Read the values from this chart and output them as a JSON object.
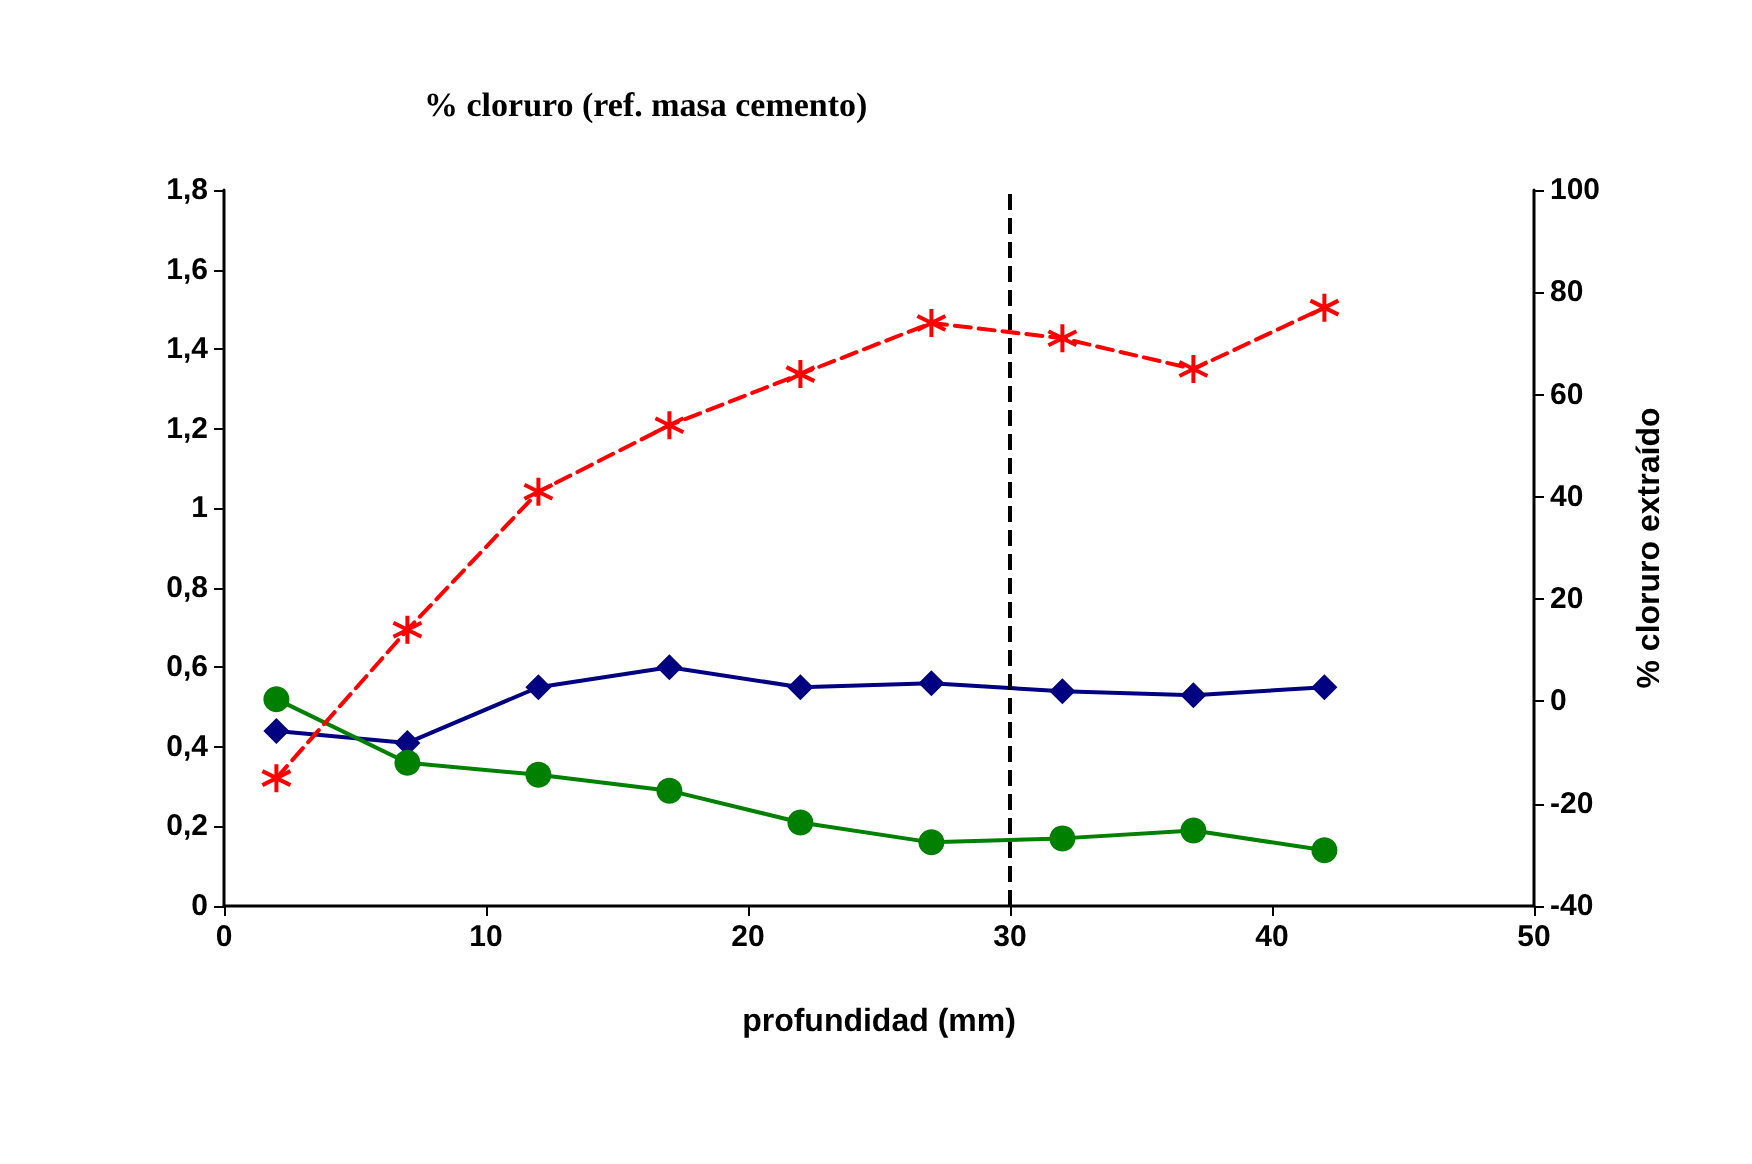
{
  "chart_data": {
    "type": "line",
    "ylabel": "% cloruro (ref. masa cemento)",
    "xlabel": "profundidad (mm)",
    "y2label": "% cloruro extraído",
    "x": [
      2,
      7,
      12,
      17,
      22,
      27,
      32,
      37,
      42
    ],
    "series": [
      {
        "color": "#000080",
        "marker": "diamond",
        "line_style": "solid",
        "values": [
          0.44,
          0.41,
          0.55,
          0.6,
          0.55,
          0.56,
          0.54,
          0.53,
          0.55
        ]
      },
      {
        "color": "#008000",
        "marker": "circle",
        "line_style": "solid",
        "values": [
          0.52,
          0.36,
          0.33,
          0.29,
          0.21,
          0.16,
          0.17,
          0.19,
          0.14
        ]
      },
      {
        "color": "#ff0000",
        "marker": "cross",
        "line_style": "dashed",
        "axis": "y2",
        "values": [
          -15,
          14,
          41,
          54,
          64,
          74,
          71,
          65,
          77
        ]
      }
    ],
    "xlim": [
      0,
      50
    ],
    "xticks": [
      0,
      10,
      20,
      30,
      40,
      50
    ],
    "ylim": [
      0,
      1.8
    ],
    "yticks": [
      0,
      {
        "value": 0.2,
        "label": "0,2"
      },
      {
        "value": 0.4,
        "label": "0,4"
      },
      {
        "value": 0.6,
        "label": "0,6"
      },
      {
        "value": 0.8,
        "label": "0,8"
      },
      1,
      {
        "value": 1.2,
        "label": "1,2"
      },
      {
        "value": 1.4,
        "label": "1,4"
      },
      {
        "value": 1.6,
        "label": "1,6"
      },
      {
        "value": 1.8,
        "label": "1,8"
      }
    ],
    "y2lim": [
      -40,
      100
    ],
    "y2ticks": [
      -40,
      -20,
      0,
      20,
      40,
      60,
      80,
      100
    ],
    "ref_lines": [
      {
        "axis": "x",
        "value": 30,
        "color": "#000000",
        "line_style": "dashed"
      }
    ],
    "grid": false
  }
}
